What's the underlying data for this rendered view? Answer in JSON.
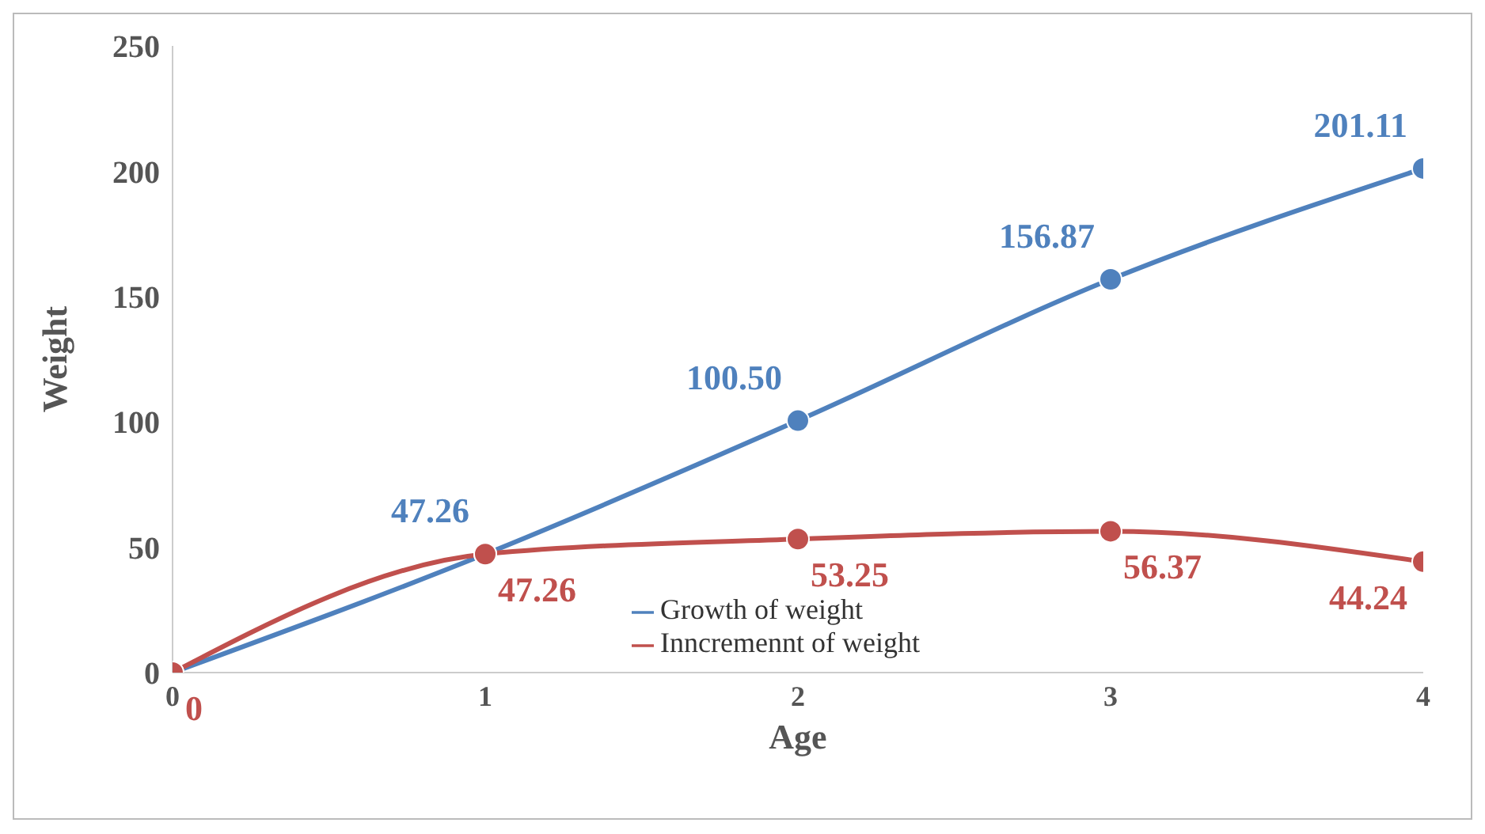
{
  "chart_data": {
    "type": "line",
    "xlabel": "Age",
    "ylabel": "Weight",
    "x": [
      0,
      1,
      2,
      3,
      4
    ],
    "series": [
      {
        "name": "Growth of weight",
        "color": "#4f81bd",
        "values": [
          0,
          47.26,
          100.5,
          156.87,
          201.11
        ],
        "value_labels": [
          null,
          "47.26",
          "100.50",
          "156.87",
          "201.11"
        ]
      },
      {
        "name": "Inncremennt of weight",
        "color": "#c0504d",
        "values": [
          0,
          47.26,
          53.25,
          56.37,
          44.24
        ],
        "value_labels": [
          "0",
          "47.26",
          "53.25",
          "56.37",
          "44.24"
        ]
      }
    ],
    "xlim": [
      0,
      4
    ],
    "xticks": [
      0,
      1,
      2,
      3,
      4
    ],
    "ylim": [
      0,
      250
    ],
    "yticks": [
      0,
      50,
      100,
      150,
      200,
      250
    ],
    "grid": false,
    "legend": "bottom",
    "marker": "circle",
    "line_style": "solid"
  }
}
